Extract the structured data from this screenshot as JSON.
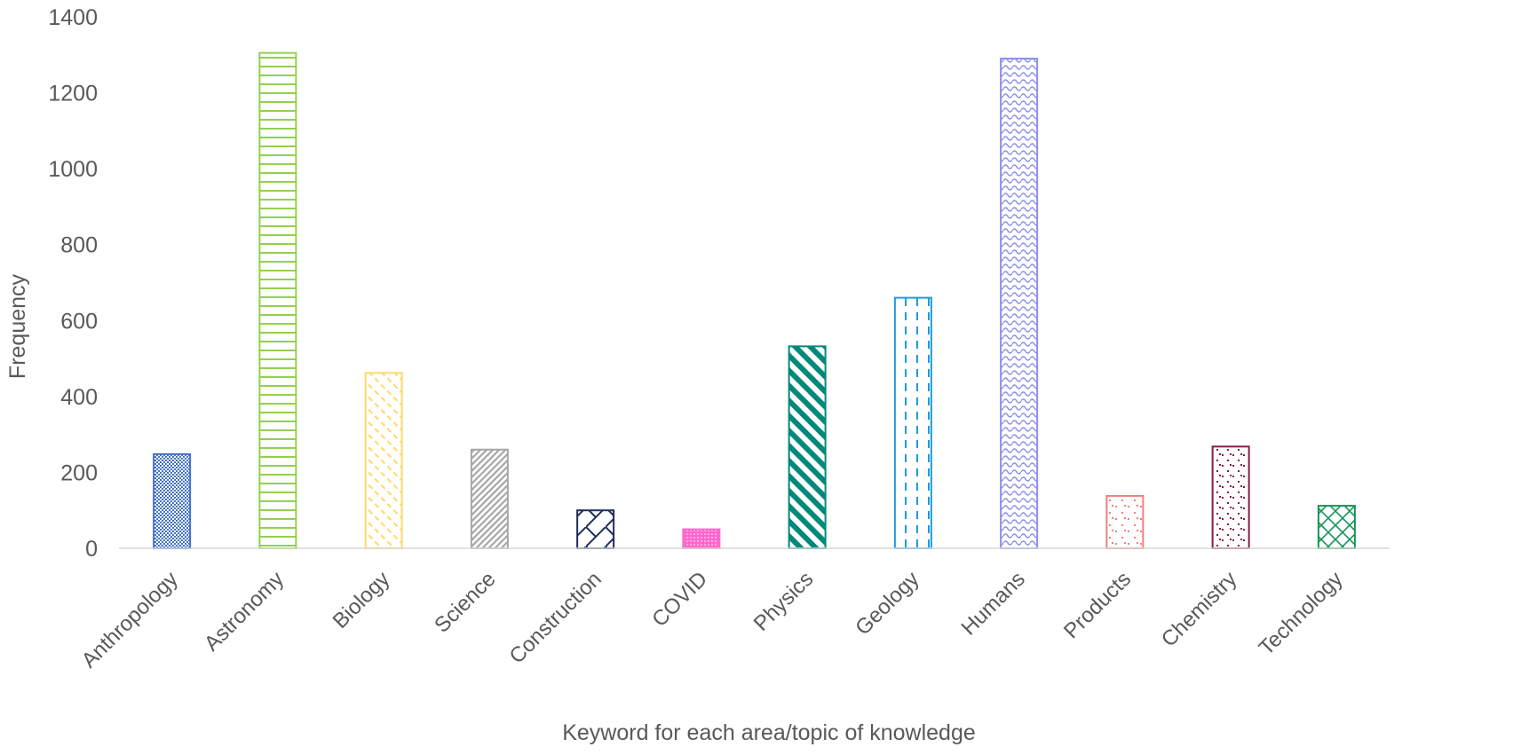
{
  "chart_data": {
    "type": "bar",
    "title": "",
    "xlabel": "Keyword for each area/topic of knowledge",
    "ylabel": "Frequency",
    "ylim": [
      0,
      1400
    ],
    "yticks": [
      0,
      200,
      400,
      600,
      800,
      1000,
      1200,
      1400
    ],
    "grid": false,
    "legend": "none",
    "categories": [
      "Anthropology",
      "Astronomy",
      "Biology",
      "Science",
      "Construction",
      "COVID",
      "Physics",
      "Geology",
      "Humans",
      "Products",
      "Chemistry",
      "Technology"
    ],
    "values": [
      248,
      1305,
      462,
      260,
      100,
      50,
      532,
      660,
      1290,
      138,
      268,
      112
    ],
    "bar_colors": [
      "#4472C4",
      "#92D050",
      "#FFD966",
      "#A6A6A6",
      "#1F2D5C",
      "#FF66CC",
      "#00897B",
      "#1F9BDE",
      "#8A8FE8",
      "#F08080",
      "#8B1A4A",
      "#17955A"
    ],
    "bar_patterns": [
      "checker",
      "hlines",
      "dashes",
      "diagonal",
      "diamond",
      "dots",
      "diagonal-wide",
      "vdash",
      "wave",
      "sparse-dots",
      "sparse-dots-dense",
      "lattice"
    ]
  }
}
